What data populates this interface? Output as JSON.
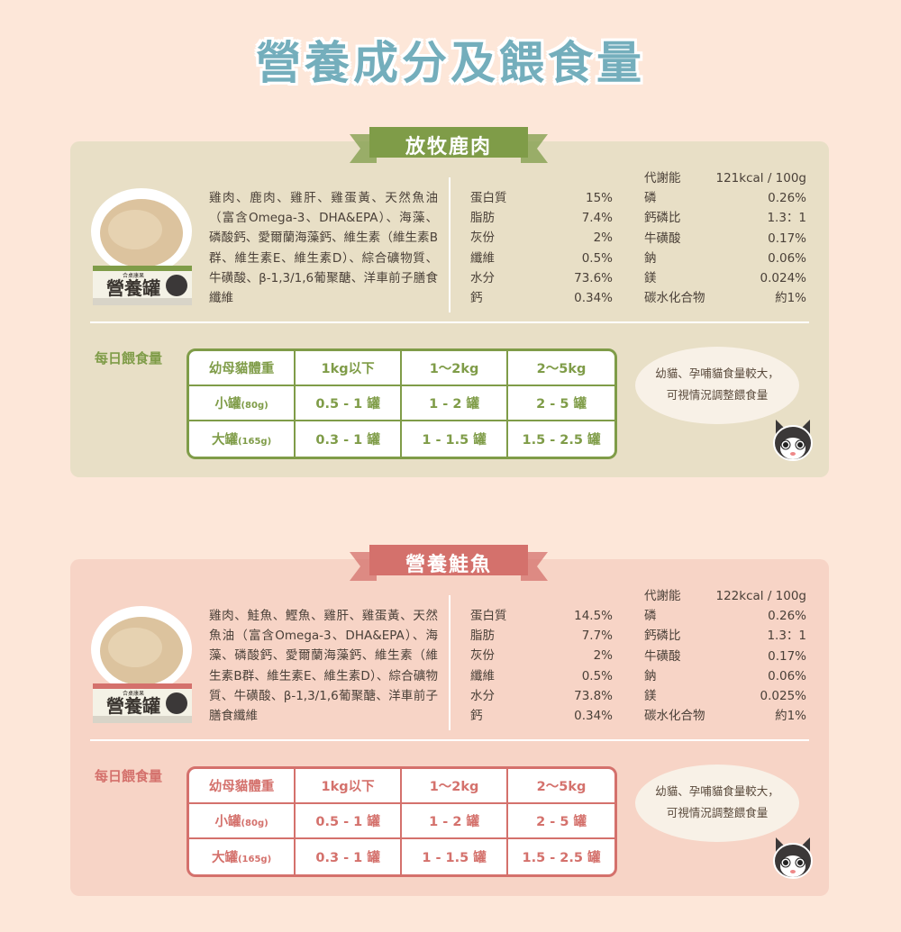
{
  "page_title": "營養成分及餵食量",
  "sections": [
    {
      "name": "放牧鹿肉",
      "accent": "#7f9c48",
      "panel": "#e8dfc6",
      "can_label": "營養罐",
      "can_sub": "合桌康果",
      "ingredients": "雞肉、鹿肉、雞肝、雞蛋黃、天然魚油（富含Omega-3、DHA&EPA）、海藻、磷酸鈣、愛爾蘭海藻鈣、維生素（維生素B群、維生素E、維生素D）、綜合礦物質、牛磺酸、β-1,3/1,6葡聚醣、洋車前子膳食纖維",
      "nutrition_left": [
        {
          "k": "蛋白質",
          "v": "15%"
        },
        {
          "k": "脂肪",
          "v": "7.4%"
        },
        {
          "k": "灰份",
          "v": "2%"
        },
        {
          "k": "纖維",
          "v": "0.5%"
        },
        {
          "k": "水分",
          "v": "73.6%"
        },
        {
          "k": "鈣",
          "v": "0.34%"
        }
      ],
      "nutrition_right": [
        {
          "k": "代謝能",
          "v": "121kcal / 100g"
        },
        {
          "k": "磷",
          "v": "0.26%"
        },
        {
          "k": "鈣磷比",
          "v": "1.3：1"
        },
        {
          "k": "牛磺酸",
          "v": "0.17%"
        },
        {
          "k": "鈉",
          "v": "0.06%"
        },
        {
          "k": "鎂",
          "v": "0.024%"
        },
        {
          "k": "碳水化合物",
          "v": "約1%"
        }
      ],
      "feeding_label": "每日餵食量",
      "table": {
        "header": [
          "幼母貓體重",
          "1kg以下",
          "1～2kg",
          "2～5kg"
        ],
        "rows": [
          {
            "label": "小罐",
            "unit": "(80g)",
            "values": [
              "0.5 - 1 罐",
              "1 - 2 罐",
              "2 - 5 罐"
            ]
          },
          {
            "label": "大罐",
            "unit": "(165g)",
            "values": [
              "0.3 - 1 罐",
              "1 - 1.5 罐",
              "1.5 - 2.5 罐"
            ]
          }
        ]
      },
      "bubble": [
        "幼貓、孕哺貓食量較大，",
        "可視情況調整餵食量"
      ]
    },
    {
      "name": "營養鮭魚",
      "accent": "#d4716c",
      "panel": "#f7d4c6",
      "can_label": "營養罐",
      "can_sub": "合桌康果",
      "ingredients": "雞肉、鮭魚、鰹魚、雞肝、雞蛋黃、天然魚油（富含Omega-3、DHA&EPA）、海藻、磷酸鈣、愛爾蘭海藻鈣、維生素（維生素B群、維生素E、維生素D）、綜合礦物質、牛磺酸、β-1,3/1,6葡聚醣、洋車前子膳食纖維",
      "nutrition_left": [
        {
          "k": "蛋白質",
          "v": "14.5%"
        },
        {
          "k": "脂肪",
          "v": "7.7%"
        },
        {
          "k": "灰份",
          "v": "2%"
        },
        {
          "k": "纖維",
          "v": "0.5%"
        },
        {
          "k": "水分",
          "v": "73.8%"
        },
        {
          "k": "鈣",
          "v": "0.34%"
        }
      ],
      "nutrition_right": [
        {
          "k": "代謝能",
          "v": "122kcal / 100g"
        },
        {
          "k": "磷",
          "v": "0.26%"
        },
        {
          "k": "鈣磷比",
          "v": "1.3：1"
        },
        {
          "k": "牛磺酸",
          "v": "0.17%"
        },
        {
          "k": "鈉",
          "v": "0.06%"
        },
        {
          "k": "鎂",
          "v": "0.025%"
        },
        {
          "k": "碳水化合物",
          "v": "約1%"
        }
      ],
      "feeding_label": "每日餵食量",
      "table": {
        "header": [
          "幼母貓體重",
          "1kg以下",
          "1～2kg",
          "2～5kg"
        ],
        "rows": [
          {
            "label": "小罐",
            "unit": "(80g)",
            "values": [
              "0.5 - 1 罐",
              "1 - 2 罐",
              "2 - 5 罐"
            ]
          },
          {
            "label": "大罐",
            "unit": "(165g)",
            "values": [
              "0.3 - 1 罐",
              "1 - 1.5 罐",
              "1.5 - 2.5 罐"
            ]
          }
        ]
      },
      "bubble": [
        "幼貓、孕哺貓食量較大，",
        "可視情況調整餵食量"
      ]
    }
  ]
}
